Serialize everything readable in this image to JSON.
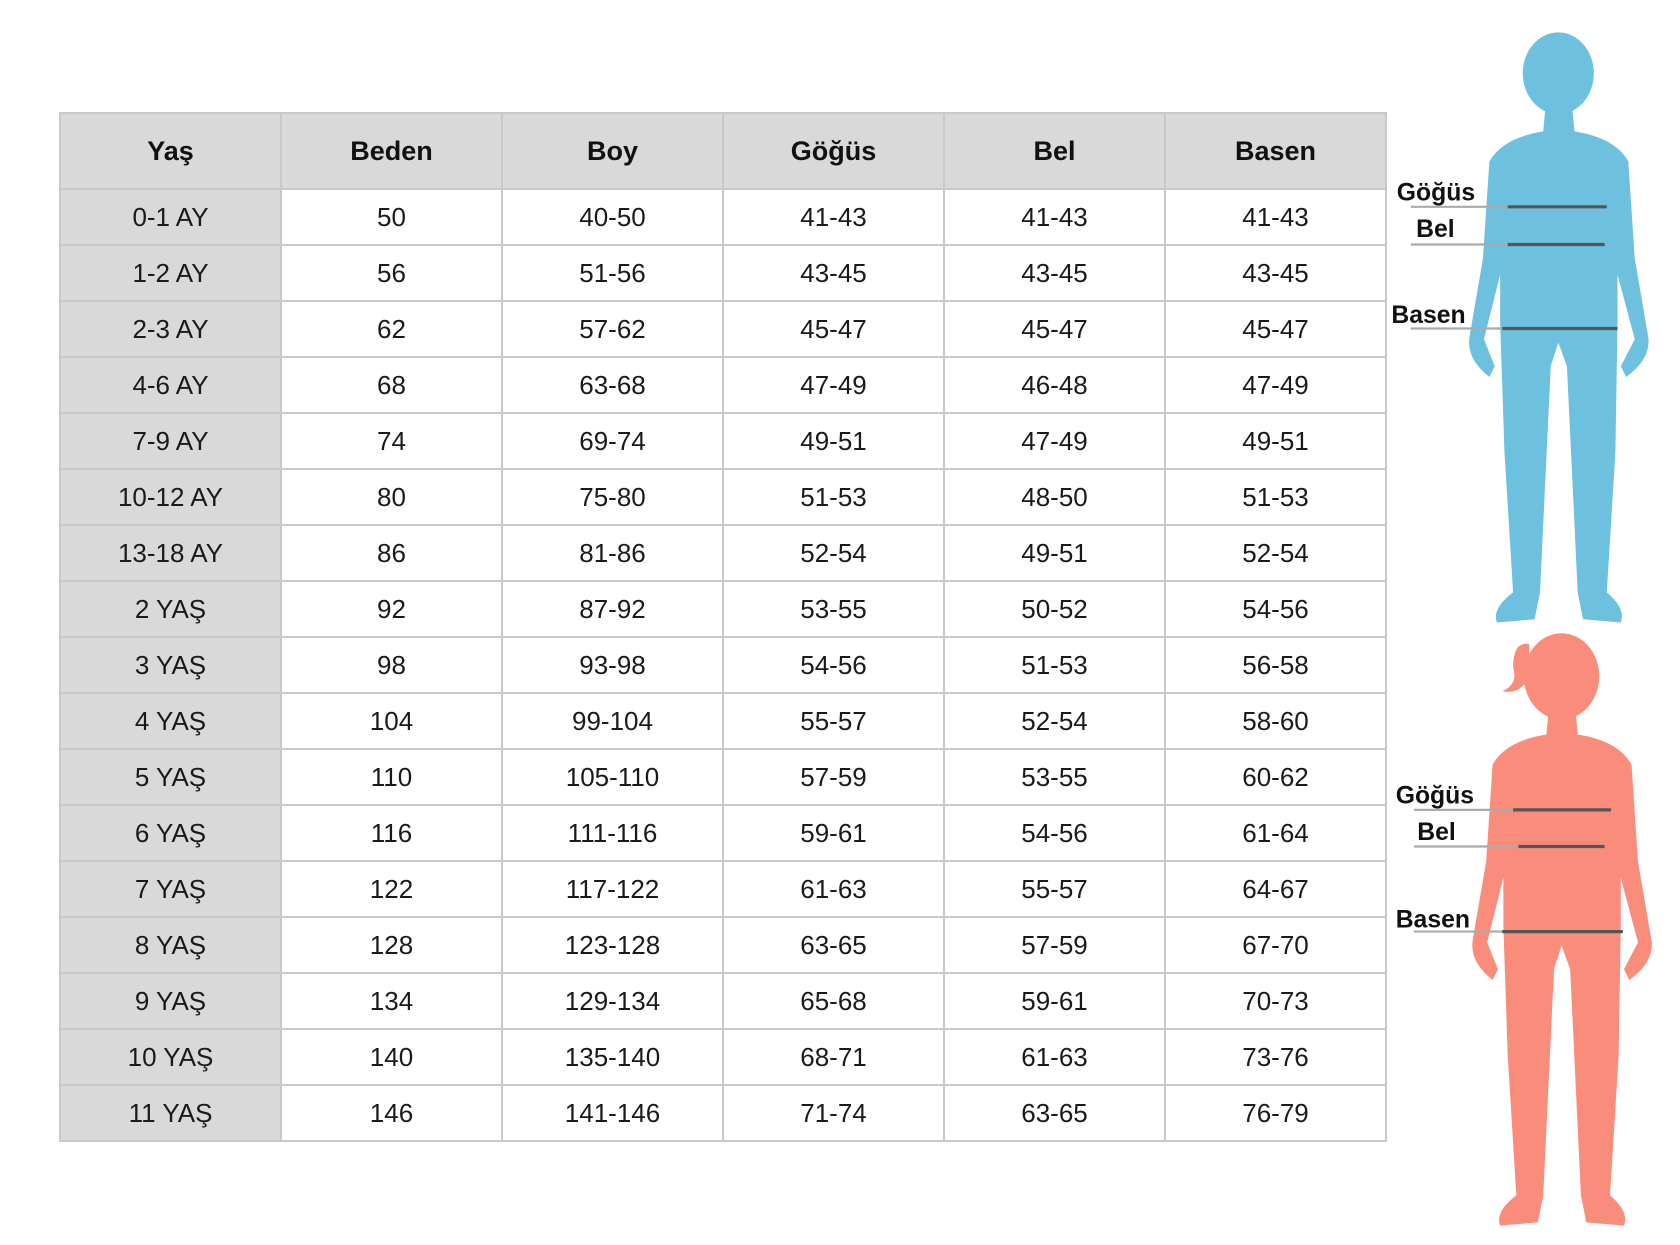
{
  "table": {
    "headers": [
      "Yaş",
      "Beden",
      "Boy",
      "Göğüs",
      "Bel",
      "Basen"
    ],
    "rows": [
      [
        "0-1 AY",
        "50",
        "40-50",
        "41-43",
        "41-43",
        "41-43"
      ],
      [
        "1-2 AY",
        "56",
        "51-56",
        "43-45",
        "43-45",
        "43-45"
      ],
      [
        "2-3 AY",
        "62",
        "57-62",
        "45-47",
        "45-47",
        "45-47"
      ],
      [
        "4-6 AY",
        "68",
        "63-68",
        "47-49",
        "46-48",
        "47-49"
      ],
      [
        "7-9 AY",
        "74",
        "69-74",
        "49-51",
        "47-49",
        "49-51"
      ],
      [
        "10-12 AY",
        "80",
        "75-80",
        "51-53",
        "48-50",
        "51-53"
      ],
      [
        "13-18 AY",
        "86",
        "81-86",
        "52-54",
        "49-51",
        "52-54"
      ],
      [
        "2 YAŞ",
        "92",
        "87-92",
        "53-55",
        "50-52",
        "54-56"
      ],
      [
        "3 YAŞ",
        "98",
        "93-98",
        "54-56",
        "51-53",
        "56-58"
      ],
      [
        "4 YAŞ",
        "104",
        "99-104",
        "55-57",
        "52-54",
        "58-60"
      ],
      [
        "5 YAŞ",
        "110",
        "105-110",
        "57-59",
        "53-55",
        "60-62"
      ],
      [
        "6 YAŞ",
        "116",
        "111-116",
        "59-61",
        "54-56",
        "61-64"
      ],
      [
        "7 YAŞ",
        "122",
        "117-122",
        "61-63",
        "55-57",
        "64-67"
      ],
      [
        "8 YAŞ",
        "128",
        "123-128",
        "63-65",
        "57-59",
        "67-70"
      ],
      [
        "9 YAŞ",
        "134",
        "129-134",
        "65-68",
        "59-61",
        "70-73"
      ],
      [
        "10 YAŞ",
        "140",
        "135-140",
        "68-71",
        "61-63",
        "73-76"
      ],
      [
        "11 YAŞ",
        "146",
        "141-146",
        "71-74",
        "63-65",
        "76-79"
      ]
    ]
  },
  "figures": {
    "boy": {
      "color": "#6ec1de",
      "labels": {
        "chest": "Göğüs",
        "waist": "Bel",
        "hip": "Basen"
      }
    },
    "girl": {
      "color": "#fa8c7c",
      "labels": {
        "chest": "Göğüs",
        "waist": "Bel",
        "hip": "Basen"
      }
    }
  }
}
